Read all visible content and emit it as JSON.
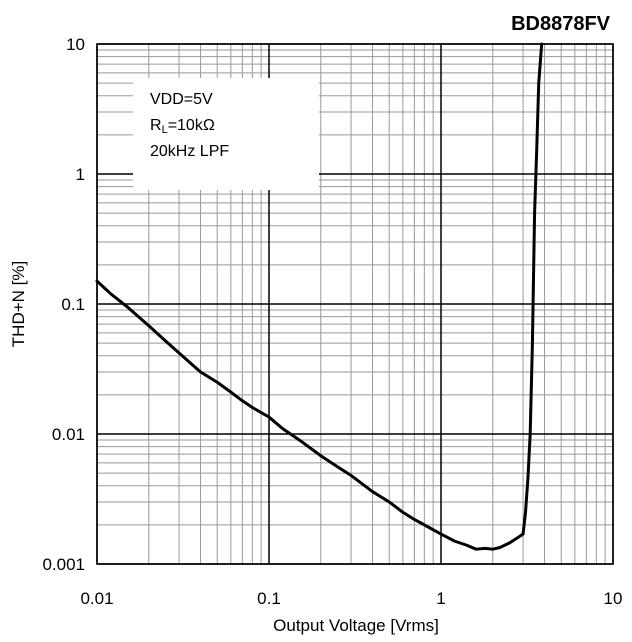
{
  "chart_data": {
    "type": "line",
    "title": "BD8878FV",
    "xlabel": "Output Voltage [Vrms]",
    "ylabel": "THD+N [%]",
    "xscale": "log",
    "yscale": "log",
    "xlim": [
      0.01,
      10
    ],
    "ylim": [
      0.001,
      10
    ],
    "x_ticks": [
      0.01,
      0.1,
      1,
      10
    ],
    "x_tick_labels": [
      "0.01",
      "0.1",
      "1",
      "10"
    ],
    "y_ticks": [
      0.001,
      0.01,
      0.1,
      1,
      10
    ],
    "y_tick_labels": [
      "0.001",
      "0.01",
      "0.1",
      "1",
      "10"
    ],
    "grid": true,
    "legend": "none",
    "annotation": {
      "line1": "VDD=5V",
      "line2_main": "R",
      "line2_sub": "L",
      "line2_rest": "=10kΩ",
      "line3": "20kHz LPF"
    },
    "series": [
      {
        "color": "#000000",
        "x": [
          0.01,
          0.012,
          0.015,
          0.02,
          0.025,
          0.03,
          0.04,
          0.05,
          0.06,
          0.07,
          0.08,
          0.1,
          0.12,
          0.15,
          0.2,
          0.25,
          0.3,
          0.4,
          0.5,
          0.6,
          0.7,
          0.8,
          1.0,
          1.2,
          1.4,
          1.6,
          1.8,
          2.0,
          2.2,
          2.5,
          2.8,
          3.0,
          3.1,
          3.2,
          3.3,
          3.4,
          3.5,
          3.6,
          3.7,
          3.8,
          3.85
        ],
        "y": [
          0.15,
          0.12,
          0.095,
          0.068,
          0.052,
          0.042,
          0.03,
          0.025,
          0.021,
          0.018,
          0.016,
          0.0135,
          0.011,
          0.009,
          0.0068,
          0.0056,
          0.0048,
          0.0036,
          0.003,
          0.0025,
          0.0022,
          0.002,
          0.0017,
          0.0015,
          0.0014,
          0.0013,
          0.00132,
          0.0013,
          0.00134,
          0.00145,
          0.0016,
          0.0017,
          0.0025,
          0.0045,
          0.01,
          0.05,
          0.5,
          1.5,
          5.0,
          8.0,
          10.0
        ]
      }
    ]
  }
}
